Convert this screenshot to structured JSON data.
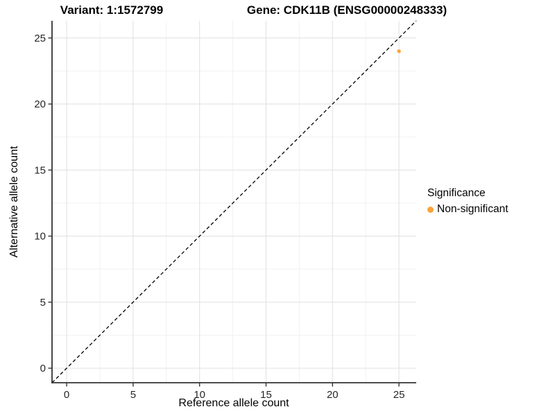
{
  "chart_data": {
    "type": "scatter",
    "title_left": "Variant: 1:1572799",
    "title_right": "Gene: CDK11B (ENSG00000248333)",
    "xlabel": "Reference allele count",
    "ylabel": "Alternative allele count",
    "xlim": [
      -1.1,
      26.3
    ],
    "ylim": [
      -1.1,
      26.3
    ],
    "xticks": [
      0,
      5,
      10,
      15,
      20,
      25
    ],
    "yticks": [
      0,
      5,
      10,
      15,
      20,
      25
    ],
    "minor_tick_step": 2.5,
    "grid": "major+minor",
    "reference_line": {
      "type": "identity-diagonal",
      "style": "dashed",
      "color": "#000000"
    },
    "series": [
      {
        "name": "Non-significant",
        "color": "#FAA43C",
        "marker": "circle",
        "points": [
          {
            "x": 25,
            "y": 24
          }
        ]
      }
    ],
    "legend": {
      "title": "Significance",
      "position": "right",
      "entries": [
        {
          "label": "Non-significant",
          "color": "#FAA43C"
        }
      ]
    }
  },
  "colors": {
    "background": "#FFFFFF",
    "axis_line": "#333333",
    "tick_mark": "#333333",
    "tick_label": "#262626",
    "grid_major": "#E4E4E4",
    "grid_minor": "#F1F1F1"
  }
}
